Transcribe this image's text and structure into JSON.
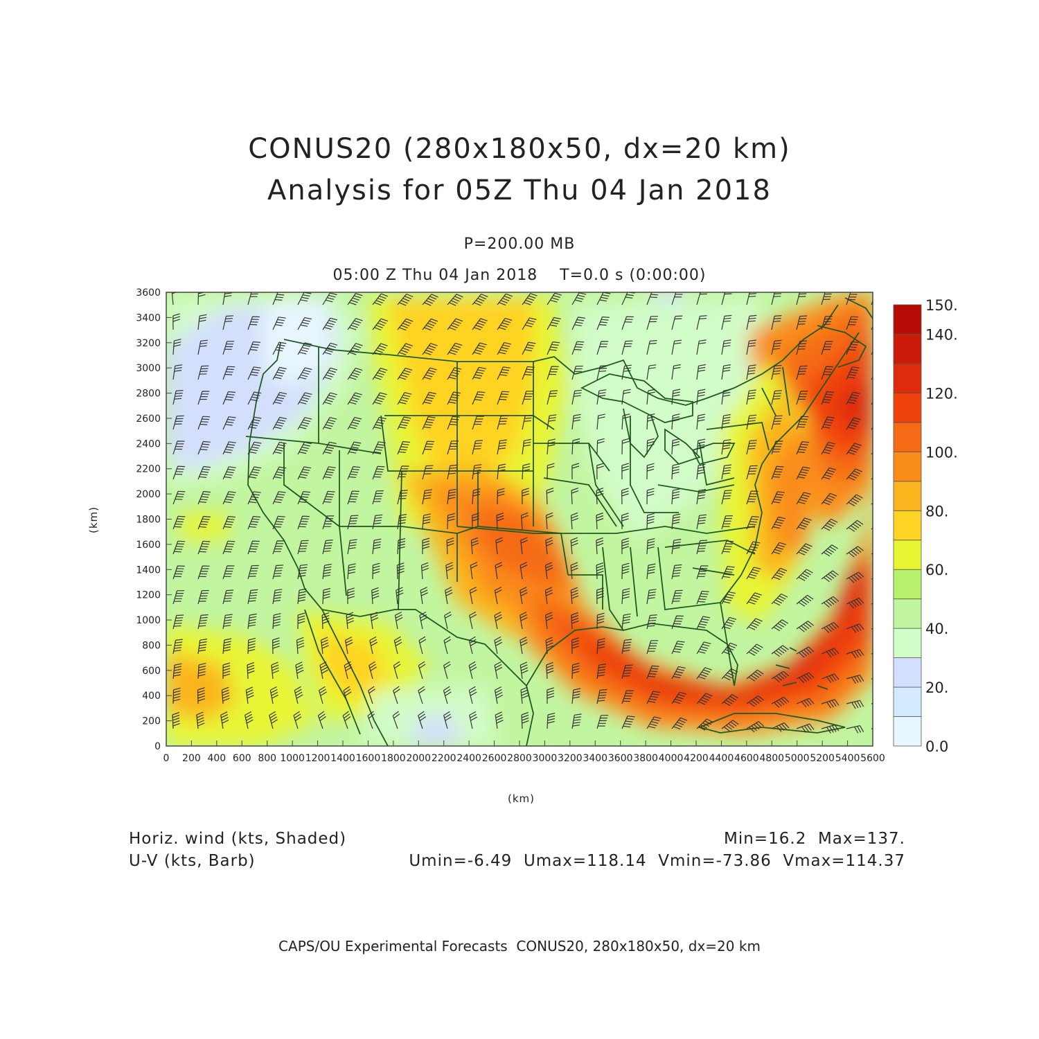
{
  "header": {
    "title_line1": "CONUS20 (280x180x50, dx=20 km)",
    "title_line2": "Analysis for 05Z Thu 04 Jan 2018",
    "level": "P=200.00 MB",
    "time": "05:00 Z Thu 04 Jan 2018    T=0.0 s (0:00:00)"
  },
  "axes": {
    "x_label": "(km)",
    "y_label": "(km)",
    "x_ticks": [
      "0",
      "200",
      "400",
      "600",
      "800",
      "1000",
      "1200",
      "1400",
      "1600",
      "1800",
      "2000",
      "2200",
      "2400",
      "2600",
      "2800",
      "3000",
      "3200",
      "3400",
      "3600",
      "3800",
      "4000",
      "4200",
      "4400",
      "4600",
      "4800",
      "5000",
      "5200",
      "5400",
      "5600"
    ],
    "y_ticks": [
      "0",
      "200",
      "400",
      "600",
      "800",
      "1000",
      "1200",
      "1400",
      "1600",
      "1800",
      "2000",
      "2200",
      "2400",
      "2600",
      "2800",
      "3000",
      "3200",
      "3400",
      "3600"
    ],
    "x_range": [
      0,
      5600
    ],
    "y_range": [
      0,
      3600
    ]
  },
  "colorbar": {
    "labels": [
      "0.0",
      "20.",
      "40.",
      "60.",
      "80.",
      "100.",
      "120.",
      "140.",
      "150."
    ],
    "levels": [
      0,
      10,
      20,
      30,
      40,
      50,
      60,
      70,
      80,
      90,
      100,
      110,
      120,
      130,
      140,
      150
    ],
    "colors": [
      "#e8f6ff",
      "#d4eaff",
      "#d3dffc",
      "#d2fcc8",
      "#c2f5a0",
      "#b9f06c",
      "#e8f535",
      "#ffd323",
      "#fbb51e",
      "#fa8c1a",
      "#f56a14",
      "#f0420d",
      "#df2b0b",
      "#cb1b08",
      "#b50d06"
    ]
  },
  "footer_left": {
    "line1": "Horiz. wind (kts, Shaded)",
    "line2": "U-V (kts, Barb)"
  },
  "footer_right": {
    "line1": "Min=16.2  Max=137.",
    "line2": "Umin=-6.49  Umax=118.14  Vmin=-73.86  Vmax=114.37"
  },
  "credit": "CAPS/OU Experimental Forecasts  CONUS20, 280x180x50, dx=20 km",
  "colors": {
    "boundary": "#1f5a1f",
    "barb": "#333333",
    "text": "#222222"
  }
}
